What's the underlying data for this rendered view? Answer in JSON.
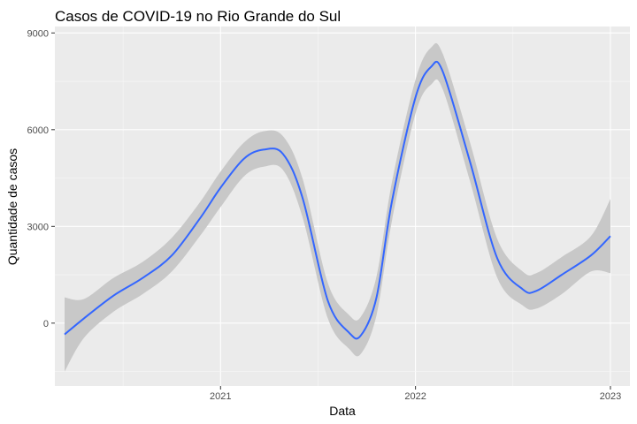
{
  "chart_data": {
    "type": "line",
    "title": "Casos de COVID-19 no Rio Grande do Sul",
    "xlabel": "Data",
    "ylabel": "Quantidade de casos",
    "x_ticks": [
      {
        "label": "2021",
        "value": 2021.0
      },
      {
        "label": "2022",
        "value": 2022.0
      },
      {
        "label": "2023",
        "value": 2023.0
      }
    ],
    "y_ticks": [
      0,
      3000,
      6000,
      9000
    ],
    "xlim": [
      2020.15,
      2023.1
    ],
    "ylim": [
      -1950,
      9200
    ],
    "grid": true,
    "background": "#ebebeb",
    "colors": {
      "line": "#3366ff",
      "ribbon": "#c8c8c8"
    },
    "series": [
      {
        "band": "confidence interval (shaded)",
        "points": [
          {
            "x": 2020.2,
            "y": -350,
            "lo": -1500,
            "hi": 800
          },
          {
            "x": 2020.3,
            "y": 150,
            "lo": -450,
            "hi": 750
          },
          {
            "x": 2020.45,
            "y": 850,
            "lo": 350,
            "hi": 1400
          },
          {
            "x": 2020.6,
            "y": 1400,
            "lo": 900,
            "hi": 1900
          },
          {
            "x": 2020.75,
            "y": 2100,
            "lo": 1600,
            "hi": 2650
          },
          {
            "x": 2020.9,
            "y": 3300,
            "lo": 2750,
            "hi": 3800
          },
          {
            "x": 2021.0,
            "y": 4200,
            "lo": 3600,
            "hi": 4700
          },
          {
            "x": 2021.12,
            "y": 5100,
            "lo": 4550,
            "hi": 5600
          },
          {
            "x": 2021.22,
            "y": 5380,
            "lo": 4850,
            "hi": 5950
          },
          {
            "x": 2021.32,
            "y": 5250,
            "lo": 4750,
            "hi": 5800
          },
          {
            "x": 2021.42,
            "y": 3900,
            "lo": 3300,
            "hi": 4500
          },
          {
            "x": 2021.55,
            "y": 700,
            "lo": 150,
            "hi": 1250
          },
          {
            "x": 2021.66,
            "y": -300,
            "lo": -800,
            "hi": 250
          },
          {
            "x": 2021.72,
            "y": -380,
            "lo": -950,
            "hi": 200
          },
          {
            "x": 2021.8,
            "y": 800,
            "lo": 250,
            "hi": 1450
          },
          {
            "x": 2021.88,
            "y": 3800,
            "lo": 3200,
            "hi": 4400
          },
          {
            "x": 2022.0,
            "y": 7000,
            "lo": 6500,
            "hi": 7550
          },
          {
            "x": 2022.08,
            "y": 7950,
            "lo": 7400,
            "hi": 8550
          },
          {
            "x": 2022.14,
            "y": 7800,
            "lo": 7250,
            "hi": 8350
          },
          {
            "x": 2022.28,
            "y": 5000,
            "lo": 4400,
            "hi": 5600
          },
          {
            "x": 2022.42,
            "y": 2000,
            "lo": 1400,
            "hi": 2600
          },
          {
            "x": 2022.55,
            "y": 1050,
            "lo": 550,
            "hi": 1600
          },
          {
            "x": 2022.62,
            "y": 1000,
            "lo": 450,
            "hi": 1550
          },
          {
            "x": 2022.75,
            "y": 1500,
            "lo": 900,
            "hi": 2050
          },
          {
            "x": 2022.9,
            "y": 2100,
            "lo": 1600,
            "hi": 2700
          },
          {
            "x": 2023.0,
            "y": 2700,
            "lo": 1550,
            "hi": 3850
          }
        ]
      }
    ]
  }
}
